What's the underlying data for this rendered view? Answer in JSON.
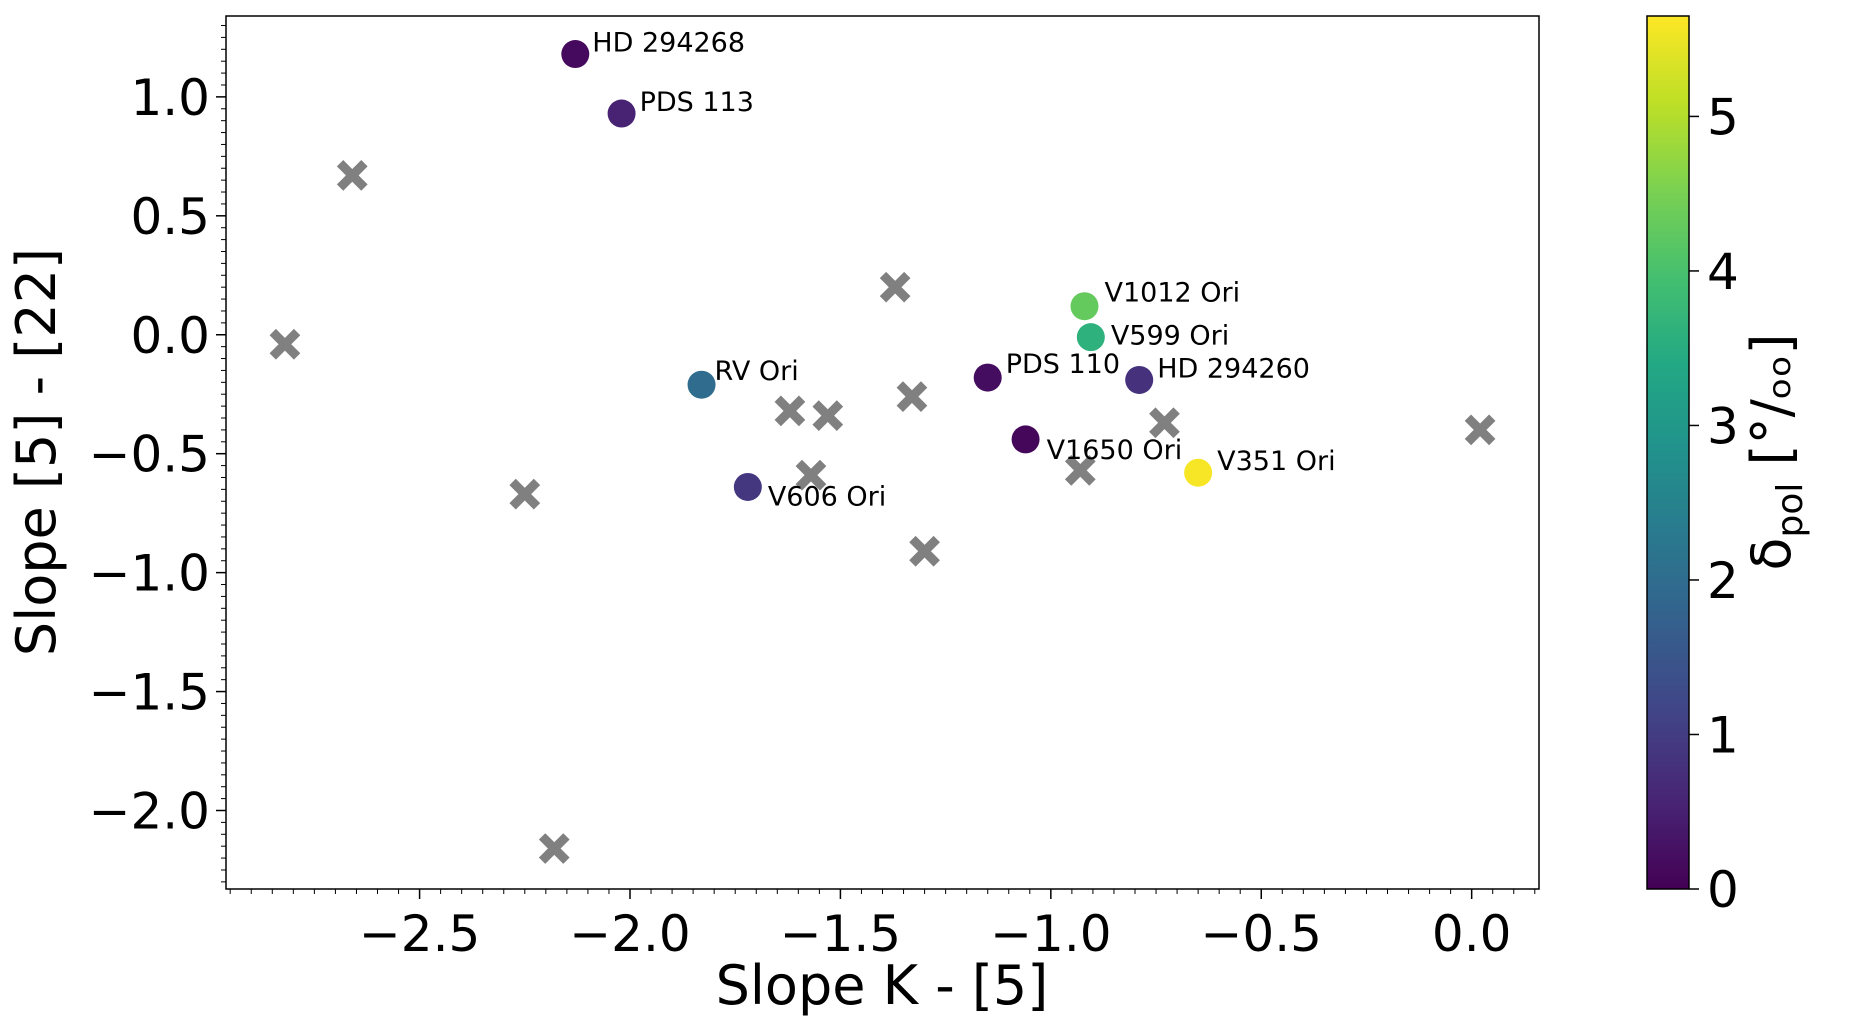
{
  "chart_data": {
    "type": "scatter",
    "title": "",
    "xlabel": "Slope K - [5]",
    "ylabel": "Slope [5] - [22]",
    "xlim": [
      -2.96,
      0.16
    ],
    "ylim": [
      -2.33,
      1.34
    ],
    "xticks": [
      -2.5,
      -2.0,
      -1.5,
      -1.0,
      -0.5,
      0.0
    ],
    "xtick_labels": [
      "−2.5",
      "−2.0",
      "−1.5",
      "−1.0",
      "−0.5",
      "0.0"
    ],
    "yticks": [
      1.0,
      0.5,
      0.0,
      -0.5,
      -1.0,
      -1.5,
      -2.0
    ],
    "ytick_labels": [
      "1.0",
      "0.5",
      "0.0",
      "−0.5",
      "−1.0",
      "−1.5",
      "−2.0"
    ],
    "colorbar": {
      "label_main": "δ",
      "label_sub": "pol",
      "label_rest": " [°/ₒₒ]",
      "range": [
        0,
        5.65
      ],
      "ticks": [
        0,
        1,
        2,
        3,
        4,
        5
      ],
      "tick_labels": [
        "0",
        "1",
        "2",
        "3",
        "4",
        "5"
      ],
      "colormap": "viridis"
    },
    "labeled_points": [
      {
        "name": "HD 294268",
        "x": -2.13,
        "y": 1.18,
        "value": 0.15
      },
      {
        "name": "PDS 113",
        "x": -2.02,
        "y": 0.93,
        "value": 0.55
      },
      {
        "name": "V1012 Ori",
        "x": -0.92,
        "y": 0.12,
        "value": 4.3
      },
      {
        "name": "V599 Ori",
        "x": -0.905,
        "y": -0.01,
        "value": 3.6
      },
      {
        "name": "HD 294260",
        "x": -0.79,
        "y": -0.19,
        "value": 0.8
      },
      {
        "name": "PDS 110",
        "x": -1.15,
        "y": -0.18,
        "value": 0.2
      },
      {
        "name": "RV Ori",
        "x": -1.83,
        "y": -0.21,
        "value": 2.0
      },
      {
        "name": "V1650 Ori",
        "x": -1.06,
        "y": -0.44,
        "value": 0.1
      },
      {
        "name": "V351 Ori",
        "x": -0.65,
        "y": -0.58,
        "value": 5.6
      },
      {
        "name": "V606 Ori",
        "x": -1.72,
        "y": -0.64,
        "value": 0.9
      }
    ],
    "unpolarized_points": [
      {
        "x": -2.66,
        "y": 0.67
      },
      {
        "x": -2.82,
        "y": -0.04
      },
      {
        "x": -1.37,
        "y": 0.2
      },
      {
        "x": -1.62,
        "y": -0.32
      },
      {
        "x": -1.53,
        "y": -0.34
      },
      {
        "x": -1.33,
        "y": -0.26
      },
      {
        "x": -0.73,
        "y": -0.37
      },
      {
        "x": 0.02,
        "y": -0.4
      },
      {
        "x": -1.57,
        "y": -0.59
      },
      {
        "x": -0.93,
        "y": -0.57
      },
      {
        "x": -2.25,
        "y": -0.67
      },
      {
        "x": -1.3,
        "y": -0.91
      },
      {
        "x": -2.18,
        "y": -2.16
      }
    ]
  }
}
